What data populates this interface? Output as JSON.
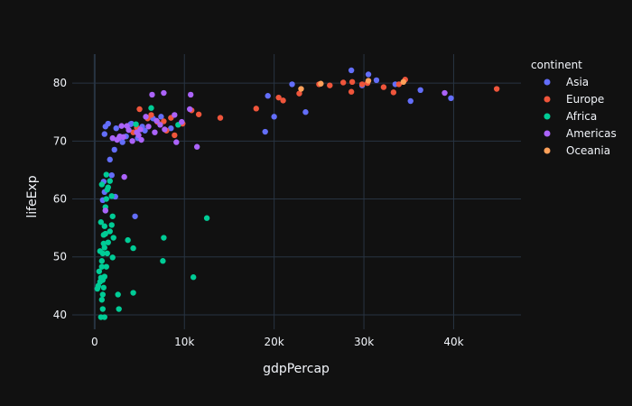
{
  "chart_data": {
    "type": "scatter",
    "title": "",
    "xlabel": "gdpPercap",
    "ylabel": "lifeExp",
    "xlim": [
      -2500,
      47500
    ],
    "ylim": [
      37.5,
      85
    ],
    "x_ticks": [
      0,
      10000,
      20000,
      30000,
      40000
    ],
    "x_tick_labels": [
      "0",
      "10k",
      "20k",
      "30k",
      "40k"
    ],
    "y_ticks": [
      40,
      50,
      60,
      70,
      80
    ],
    "y_tick_labels": [
      "40",
      "50",
      "60",
      "70",
      "80"
    ],
    "grid": true,
    "legend_title": "continent",
    "legend_position": "top-right",
    "series": [
      {
        "name": "Asia",
        "color": "#636efa",
        "points": [
          [
            28600,
            82.2
          ],
          [
            30500,
            81.5
          ],
          [
            36300,
            78.8
          ],
          [
            39700,
            77.4
          ],
          [
            35200,
            76.9
          ],
          [
            22000,
            79.8
          ],
          [
            19300,
            77.8
          ],
          [
            20000,
            74.2
          ],
          [
            23500,
            75.0
          ],
          [
            29800,
            79.6
          ],
          [
            33500,
            79.8
          ],
          [
            31400,
            80.5
          ],
          [
            19000,
            71.6
          ],
          [
            1200,
            72.5
          ],
          [
            1500,
            73.0
          ],
          [
            2400,
            72.2
          ],
          [
            3500,
            70.8
          ],
          [
            4100,
            73.0
          ],
          [
            4800,
            70.5
          ],
          [
            5600,
            71.8
          ],
          [
            6500,
            73.9
          ],
          [
            4500,
            57.0
          ],
          [
            1100,
            61.2
          ],
          [
            1900,
            64.1
          ],
          [
            2300,
            60.4
          ],
          [
            900,
            59.8
          ],
          [
            1000,
            63.0
          ],
          [
            1700,
            66.8
          ],
          [
            1100,
            71.2
          ],
          [
            2200,
            68.5
          ],
          [
            3100,
            69.8
          ],
          [
            5300,
            72.5
          ],
          [
            8500,
            72.2
          ],
          [
            4000,
            72.9
          ],
          [
            7400,
            74.2
          ]
        ]
      },
      {
        "name": "Europe",
        "color": "#ef553b",
        "points": [
          [
            44800,
            79.0
          ],
          [
            34600,
            80.6
          ],
          [
            33900,
            79.8
          ],
          [
            33300,
            78.4
          ],
          [
            32200,
            79.3
          ],
          [
            30400,
            80.0
          ],
          [
            29800,
            79.8
          ],
          [
            28700,
            80.2
          ],
          [
            28600,
            78.5
          ],
          [
            27700,
            80.1
          ],
          [
            26200,
            79.6
          ],
          [
            25000,
            79.8
          ],
          [
            22800,
            78.2
          ],
          [
            21000,
            77.0
          ],
          [
            20500,
            77.5
          ],
          [
            18000,
            75.6
          ],
          [
            14000,
            74.0
          ],
          [
            11600,
            74.6
          ],
          [
            10800,
            75.3
          ],
          [
            9800,
            73.0
          ],
          [
            8500,
            74.0
          ],
          [
            7700,
            73.4
          ],
          [
            7000,
            73.3
          ],
          [
            6300,
            74.5
          ],
          [
            5900,
            73.9
          ],
          [
            5000,
            75.5
          ],
          [
            4700,
            72.3
          ],
          [
            8000,
            71.8
          ],
          [
            8900,
            71.0
          ],
          [
            4300,
            71.5
          ]
        ]
      },
      {
        "name": "Africa",
        "color": "#00cc96",
        "points": [
          [
            12500,
            56.7
          ],
          [
            11000,
            46.5
          ],
          [
            7700,
            53.3
          ],
          [
            7600,
            49.3
          ],
          [
            6300,
            75.7
          ],
          [
            9300,
            72.8
          ],
          [
            4600,
            72.9
          ],
          [
            3700,
            52.9
          ],
          [
            4300,
            51.5
          ],
          [
            4300,
            43.8
          ],
          [
            2700,
            41.0
          ],
          [
            1900,
            55.5
          ],
          [
            1700,
            54.4
          ],
          [
            2100,
            53.3
          ],
          [
            2000,
            49.9
          ],
          [
            1500,
            52.5
          ],
          [
            1400,
            50.6
          ],
          [
            1300,
            48.3
          ],
          [
            1200,
            54.0
          ],
          [
            1100,
            51.6
          ],
          [
            1100,
            46.6
          ],
          [
            1000,
            44.7
          ],
          [
            900,
            43.5
          ],
          [
            800,
            42.6
          ],
          [
            700,
            39.6
          ],
          [
            600,
            45.7
          ],
          [
            500,
            47.5
          ],
          [
            400,
            45.0
          ],
          [
            700,
            46.4
          ],
          [
            800,
            48.3
          ],
          [
            900,
            50.6
          ],
          [
            1000,
            52.3
          ],
          [
            1100,
            55.3
          ],
          [
            1200,
            58.0
          ],
          [
            1300,
            60.0
          ],
          [
            1500,
            62.0
          ],
          [
            1700,
            63.1
          ],
          [
            900,
            41.0
          ],
          [
            600,
            51.0
          ],
          [
            2600,
            43.5
          ],
          [
            700,
            56.0
          ],
          [
            1900,
            60.5
          ],
          [
            800,
            62.5
          ],
          [
            1400,
            61.6
          ],
          [
            1200,
            58.6
          ],
          [
            1000,
            53.8
          ],
          [
            800,
            49.3
          ],
          [
            300,
            44.5
          ],
          [
            1100,
            39.6
          ],
          [
            2000,
            57.0
          ],
          [
            900,
            46.0
          ],
          [
            1300,
            64.2
          ]
        ]
      },
      {
        "name": "Americas",
        "color": "#ab63fa",
        "points": [
          [
            39000,
            78.3
          ],
          [
            10700,
            78.0
          ],
          [
            11400,
            69.0
          ],
          [
            9700,
            73.3
          ],
          [
            9100,
            69.8
          ],
          [
            7700,
            78.3
          ],
          [
            6900,
            73.5
          ],
          [
            7300,
            72.8
          ],
          [
            6700,
            71.5
          ],
          [
            5700,
            74.2
          ],
          [
            6400,
            78.0
          ],
          [
            5200,
            70.2
          ],
          [
            4900,
            71.0
          ],
          [
            4200,
            70.0
          ],
          [
            3800,
            71.9
          ],
          [
            3600,
            72.6
          ],
          [
            3200,
            70.7
          ],
          [
            2800,
            70.8
          ],
          [
            2500,
            70.2
          ],
          [
            2700,
            70.5
          ],
          [
            1200,
            58.0
          ],
          [
            3000,
            72.6
          ],
          [
            10600,
            75.5
          ],
          [
            8900,
            74.5
          ],
          [
            7800,
            72.0
          ],
          [
            6000,
            72.5
          ],
          [
            5100,
            72.0
          ],
          [
            2000,
            70.5
          ],
          [
            4700,
            71.5
          ],
          [
            3300,
            63.8
          ]
        ]
      },
      {
        "name": "Oceania",
        "color": "#ffa15a",
        "points": [
          [
            34400,
            80.2
          ],
          [
            23000,
            79.0
          ],
          [
            30500,
            80.4
          ],
          [
            25200,
            79.9
          ]
        ]
      }
    ]
  }
}
